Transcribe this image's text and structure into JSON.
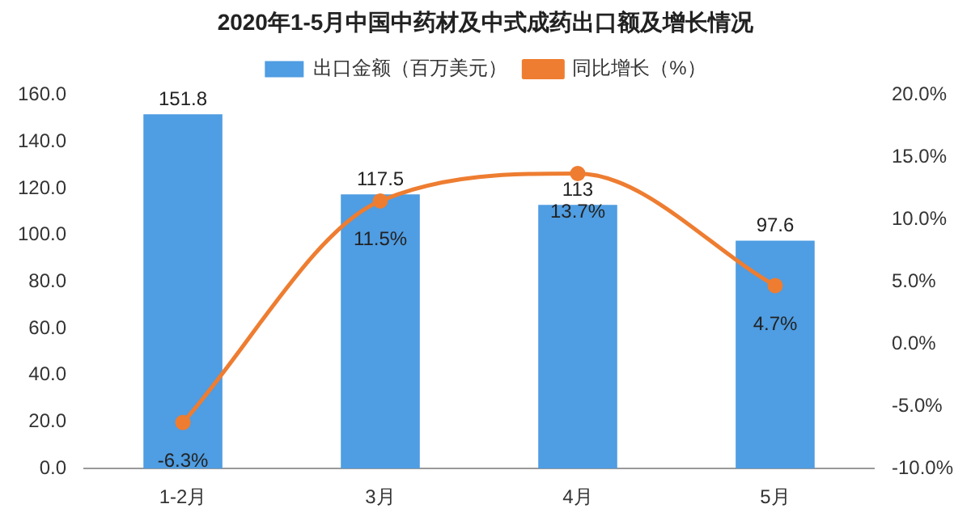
{
  "chart_data": {
    "type": "bar",
    "title": "2020年1-5月中国中药材及中式成药出口额及增长情况",
    "categories": [
      "1-2月",
      "3月",
      "4月",
      "5月"
    ],
    "series": [
      {
        "name": "出口金额（百万美元）",
        "color": "#4f9de2",
        "values": [
          151.8,
          117.5,
          113,
          97.6
        ],
        "value_labels": [
          "151.8",
          "117.5",
          "113",
          "97.6"
        ]
      },
      {
        "name": "同比增长（%）",
        "type": "line",
        "axis": "y2",
        "color": "#ee7d31",
        "values": [
          -6.3,
          11.5,
          13.7,
          4.7
        ],
        "value_labels": [
          "-6.3%",
          "11.5%",
          "13.7%",
          "4.7%"
        ],
        "marker": "circle"
      }
    ],
    "ylim": [
      0,
      160
    ],
    "yticks": [
      {
        "value": 0,
        "label": "0.0"
      },
      {
        "value": 20,
        "label": "20.0"
      },
      {
        "value": 40,
        "label": "40.0"
      },
      {
        "value": 60,
        "label": "60.0"
      },
      {
        "value": 80,
        "label": "80.0"
      },
      {
        "value": 100,
        "label": "100.0"
      },
      {
        "value": 120,
        "label": "120.0"
      },
      {
        "value": 140,
        "label": "140.0"
      },
      {
        "value": 160,
        "label": "160.0"
      }
    ],
    "y2lim": [
      -10,
      20
    ],
    "y2ticks": [
      {
        "value": -10,
        "label": "-10.0%"
      },
      {
        "value": -5,
        "label": "-5.0%"
      },
      {
        "value": 0,
        "label": "0.0%"
      },
      {
        "value": 5,
        "label": "5.0%"
      },
      {
        "value": 10,
        "label": "10.0%"
      },
      {
        "value": 15,
        "label": "15.0%"
      },
      {
        "value": 20,
        "label": "20.0%"
      }
    ],
    "legend": "top",
    "grid": false
  }
}
